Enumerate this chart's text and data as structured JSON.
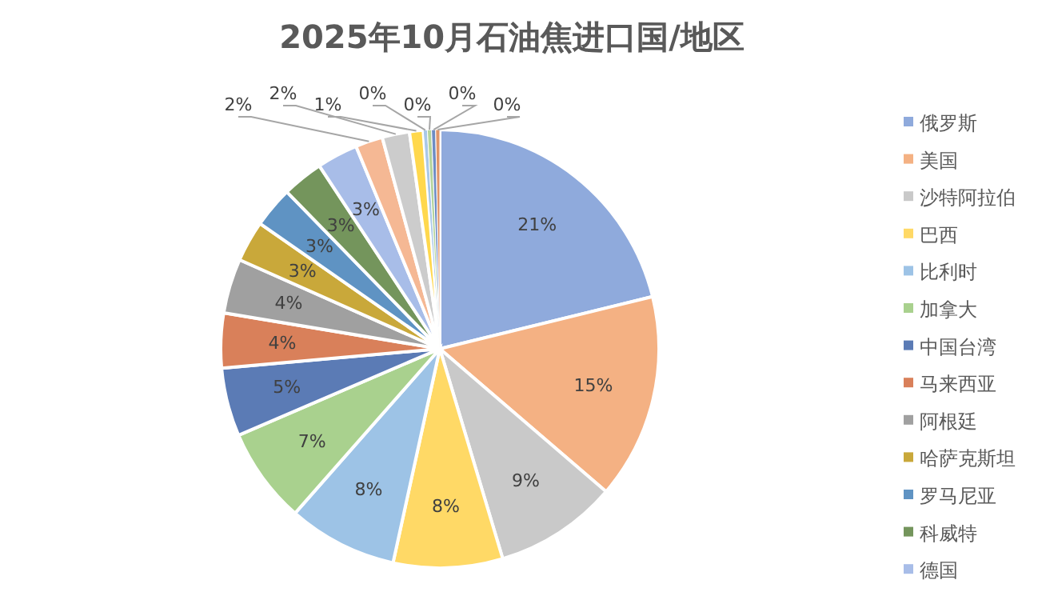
{
  "chart_data": {
    "type": "pie",
    "title": "2025年10月石油焦进口国/地区",
    "categories": [
      "俄罗斯",
      "美国",
      "沙特阿拉伯",
      "巴西",
      "比利时",
      "加拿大",
      "中国台湾",
      "马来西亚",
      "阿根廷",
      "哈萨克斯坦",
      "罗马尼亚",
      "科威特",
      "德国",
      null,
      null,
      null,
      null,
      null,
      null,
      null
    ],
    "values": [
      21,
      15,
      9,
      8,
      8,
      7,
      5,
      4,
      4,
      3,
      3,
      3,
      3,
      2,
      2,
      1,
      0.3,
      0.3,
      0.3,
      0.3
    ],
    "colors": [
      "#8faadc",
      "#f4b183",
      "#c9c9c9",
      "#ffd966",
      "#9dc3e6",
      "#a9d18e",
      "#5b7bb5",
      "#d9805a",
      "#a0a0a0",
      "#c9a83a",
      "#5f93c3",
      "#74955c",
      "#a8bde8",
      "#f5b894",
      "#cccccc",
      "#ffd84d",
      "#a9c8e8",
      "#b4d49c",
      "#6d8cc4",
      "#e0966a"
    ],
    "value_labels": [
      "21%",
      "15%",
      "9%",
      "8%",
      "8%",
      "7%",
      "5%",
      "4%",
      "4%",
      "3%",
      "3%",
      "3%",
      "3%",
      "2%",
      "2%",
      "1%",
      "0%",
      "0%",
      "0%",
      "0%"
    ],
    "legend": "right"
  }
}
